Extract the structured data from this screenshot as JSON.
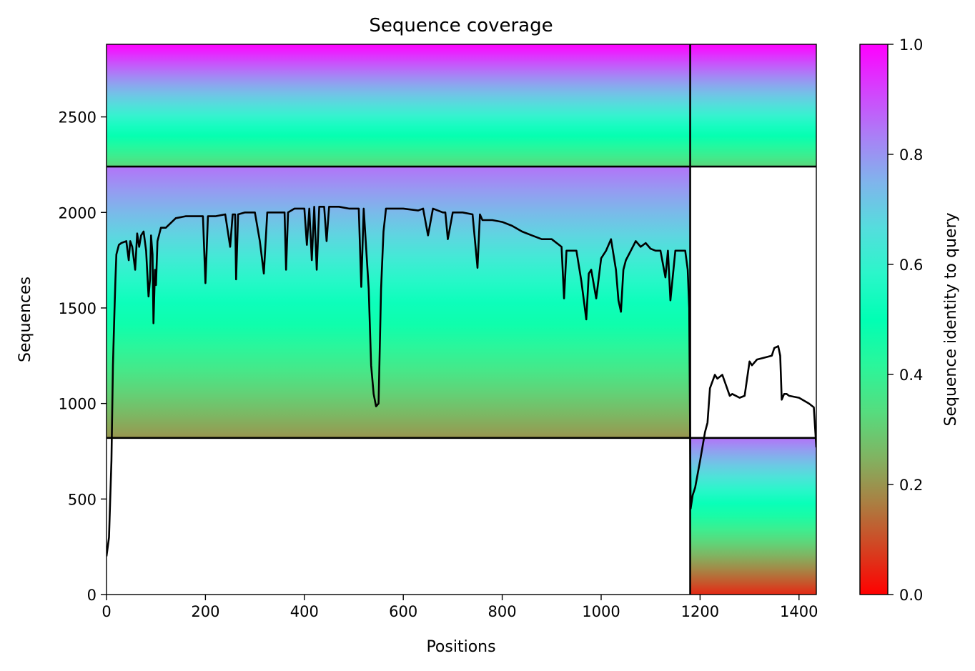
{
  "chart_data": {
    "type": "heatmap",
    "title": "Sequence coverage",
    "xlabel": "Positions",
    "ylabel": "Sequences",
    "xlim": [
      0,
      1435
    ],
    "ylim": [
      0,
      2880
    ],
    "x_ticks": [
      0,
      200,
      400,
      600,
      800,
      1000,
      1200,
      1400
    ],
    "y_ticks": [
      0,
      500,
      1000,
      1500,
      2000,
      2500
    ],
    "grid": false,
    "colorbar": {
      "label": "Sequence identity to query",
      "range": [
        0.0,
        1.0
      ],
      "ticks": [
        0.0,
        0.2,
        0.4,
        0.6,
        0.8,
        1.0
      ],
      "tick_labels": [
        "0.0",
        "0.2",
        "0.4",
        "0.6",
        "0.8",
        "1.0"
      ],
      "colormap": "rainbow_r"
    },
    "blocks": [
      {
        "x": [
          0,
          1180
        ],
        "y": [
          2240,
          2880
        ],
        "identity_bottom": 0.32,
        "identity_top": 1.0
      },
      {
        "x": [
          1180,
          1435
        ],
        "y": [
          2240,
          2880
        ],
        "identity_bottom": 0.32,
        "identity_top": 1.0
      },
      {
        "x": [
          0,
          1180
        ],
        "y": [
          820,
          2240
        ],
        "identity_bottom": 0.2,
        "identity_top": 0.85
      },
      {
        "x": [
          1180,
          1435
        ],
        "y": [
          0,
          820
        ],
        "identity_bottom": 0.05,
        "identity_top": 0.85
      }
    ],
    "dividers": {
      "horizontal_y": [
        820,
        2240
      ],
      "vertical_x": [
        1180
      ]
    },
    "coverage_line": {
      "x": [
        0,
        5,
        10,
        13,
        16,
        18,
        20,
        25,
        30,
        40,
        45,
        48,
        52,
        58,
        62,
        66,
        70,
        75,
        80,
        85,
        88,
        90,
        93,
        95,
        98,
        100,
        103,
        110,
        120,
        140,
        160,
        180,
        195,
        200,
        205,
        220,
        240,
        250,
        255,
        260,
        262,
        266,
        280,
        300,
        310,
        318,
        325,
        340,
        360,
        363,
        367,
        380,
        400,
        405,
        410,
        415,
        420,
        425,
        430,
        440,
        445,
        450,
        455,
        470,
        490,
        510,
        515,
        520,
        530,
        535,
        540,
        545,
        550,
        555,
        560,
        565,
        580,
        600,
        630,
        640,
        650,
        660,
        680,
        685,
        690,
        700,
        720,
        740,
        750,
        755,
        760,
        780,
        800,
        820,
        840,
        860,
        880,
        900,
        920,
        925,
        930,
        950,
        960,
        970,
        975,
        980,
        990,
        1000,
        1010,
        1020,
        1030,
        1035,
        1040,
        1045,
        1050,
        1060,
        1070,
        1080,
        1090,
        1100,
        1110,
        1120,
        1130,
        1135,
        1140,
        1150,
        1160,
        1170,
        1175,
        1178,
        1181,
        1185,
        1190,
        1200,
        1210,
        1215,
        1220,
        1230,
        1235,
        1245,
        1260,
        1265,
        1280,
        1290,
        1300,
        1305,
        1315,
        1330,
        1345,
        1350,
        1358,
        1362,
        1365,
        1370,
        1375,
        1380,
        1400,
        1420,
        1430,
        1435
      ],
      "y": [
        200,
        300,
        700,
        1200,
        1480,
        1650,
        1780,
        1830,
        1840,
        1850,
        1750,
        1850,
        1820,
        1700,
        1890,
        1820,
        1880,
        1900,
        1800,
        1560,
        1650,
        1880,
        1780,
        1420,
        1700,
        1620,
        1850,
        1920,
        1920,
        1970,
        1980,
        1980,
        1980,
        1630,
        1980,
        1980,
        1990,
        1820,
        1990,
        1990,
        1650,
        1990,
        2000,
        2000,
        1850,
        1680,
        2000,
        2000,
        2000,
        1700,
        2000,
        2020,
        2020,
        1830,
        2020,
        1750,
        2030,
        1700,
        2030,
        2030,
        1850,
        2030,
        2030,
        2030,
        2020,
        2020,
        1610,
        2020,
        1600,
        1200,
        1050,
        985,
        1000,
        1600,
        1900,
        2020,
        2020,
        2020,
        2010,
        2020,
        1880,
        2020,
        2000,
        2000,
        1860,
        2000,
        2000,
        1990,
        1710,
        1990,
        1960,
        1960,
        1950,
        1930,
        1900,
        1880,
        1860,
        1860,
        1820,
        1550,
        1800,
        1800,
        1640,
        1440,
        1680,
        1700,
        1550,
        1760,
        1800,
        1860,
        1700,
        1540,
        1480,
        1700,
        1750,
        1800,
        1850,
        1820,
        1840,
        1810,
        1800,
        1800,
        1660,
        1800,
        1540,
        1800,
        1800,
        1800,
        1700,
        1500,
        450,
        520,
        560,
        700,
        850,
        900,
        1080,
        1150,
        1130,
        1150,
        1040,
        1050,
        1030,
        1040,
        1220,
        1200,
        1230,
        1240,
        1250,
        1290,
        1300,
        1250,
        1020,
        1050,
        1050,
        1040,
        1030,
        1000,
        980,
        770
      ]
    }
  }
}
